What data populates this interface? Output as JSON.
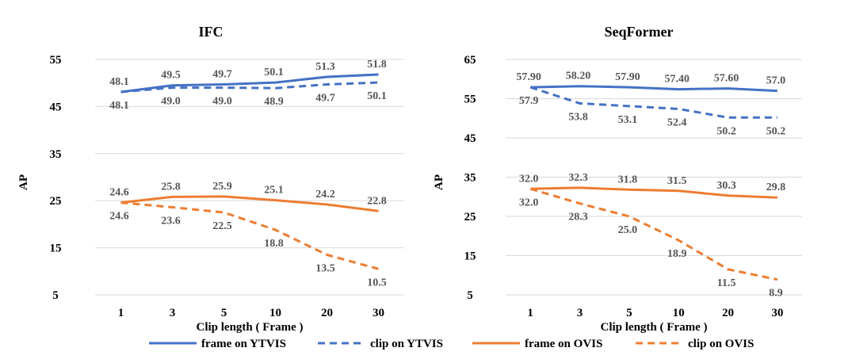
{
  "colors": {
    "ytvis": "#4472C4",
    "ovis": "#ED7D31",
    "grid": "#d9d9d9"
  },
  "legend": [
    {
      "name": "frame on YTVIS",
      "color": "#4472C4",
      "dash": false
    },
    {
      "name": "clip on YTVIS",
      "color": "#4472C4",
      "dash": true
    },
    {
      "name": "frame on OVIS",
      "color": "#ED7D31",
      "dash": false
    },
    {
      "name": "clip on OVIS",
      "color": "#ED7D31",
      "dash": true
    }
  ],
  "chart_data": [
    {
      "type": "line",
      "title": "IFC",
      "xlabel": "Clip length ( Frame )",
      "ylabel": "AP",
      "categories": [
        "1",
        "3",
        "5",
        "10",
        "20",
        "30"
      ],
      "yticks": [
        "5",
        "15",
        "25",
        "35",
        "45",
        "55"
      ],
      "ylim": [
        5,
        55
      ],
      "grid": true,
      "series": [
        {
          "name": "frame on YTVIS",
          "color": "#4472C4",
          "dash": false,
          "values": [
            48.1,
            49.5,
            49.7,
            50.1,
            51.3,
            51.8
          ],
          "labels": [
            "48.1",
            "49.5",
            "49.7",
            "50.1",
            "51.3",
            "51.8"
          ],
          "label_pos": "above"
        },
        {
          "name": "clip on YTVIS",
          "color": "#4472C4",
          "dash": true,
          "values": [
            48.1,
            49.0,
            49.0,
            48.9,
            49.7,
            50.1
          ],
          "labels": [
            "48.1",
            "49.0",
            "49.0",
            "48.9",
            "49.7",
            "50.1"
          ],
          "label_pos": "below"
        },
        {
          "name": "frame on OVIS",
          "color": "#ED7D31",
          "dash": false,
          "values": [
            24.6,
            25.8,
            25.9,
            25.1,
            24.2,
            22.8
          ],
          "labels": [
            "24.6",
            "25.8",
            "25.9",
            "25.1",
            "24.2",
            "22.8"
          ],
          "label_pos": "above"
        },
        {
          "name": "clip on OVIS",
          "color": "#ED7D31",
          "dash": true,
          "values": [
            24.6,
            23.6,
            22.5,
            18.8,
            13.5,
            10.5
          ],
          "labels": [
            "24.6",
            "23.6",
            "22.5",
            "18.8",
            "13.5",
            "10.5"
          ],
          "label_pos": "below"
        }
      ]
    },
    {
      "type": "line",
      "title": "SeqFormer",
      "xlabel": "Clip length ( Frame )",
      "ylabel": "AP",
      "categories": [
        "1",
        "3",
        "5",
        "10",
        "20",
        "30"
      ],
      "yticks": [
        "5",
        "15",
        "25",
        "35",
        "45",
        "55",
        "65"
      ],
      "ylim": [
        5,
        65
      ],
      "grid": true,
      "series": [
        {
          "name": "frame on YTVIS",
          "color": "#4472C4",
          "dash": false,
          "values": [
            57.9,
            58.2,
            57.9,
            57.4,
            57.6,
            57.0
          ],
          "labels": [
            "57.90",
            "58.20",
            "57.90",
            "57.40",
            "57.60",
            "57.0"
          ],
          "label_pos": "above"
        },
        {
          "name": "clip on YTVIS",
          "color": "#4472C4",
          "dash": true,
          "values": [
            57.9,
            53.8,
            53.1,
            52.4,
            50.2,
            50.2
          ],
          "labels": [
            "57.9",
            "53.8",
            "53.1",
            "52.4",
            "50.2",
            "50.2"
          ],
          "label_pos": "below"
        },
        {
          "name": "frame on OVIS",
          "color": "#ED7D31",
          "dash": false,
          "values": [
            32.0,
            32.3,
            31.8,
            31.5,
            30.3,
            29.8
          ],
          "labels": [
            "32.0",
            "32.3",
            "31.8",
            "31.5",
            "30.3",
            "29.8"
          ],
          "label_pos": "above"
        },
        {
          "name": "clip on OVIS",
          "color": "#ED7D31",
          "dash": true,
          "values": [
            32.0,
            28.3,
            25.0,
            18.9,
            11.5,
            8.9
          ],
          "labels": [
            "32.0",
            "28.3",
            "25.0",
            "18.9",
            "11.5",
            "8.9"
          ],
          "label_pos": "below"
        }
      ]
    }
  ]
}
